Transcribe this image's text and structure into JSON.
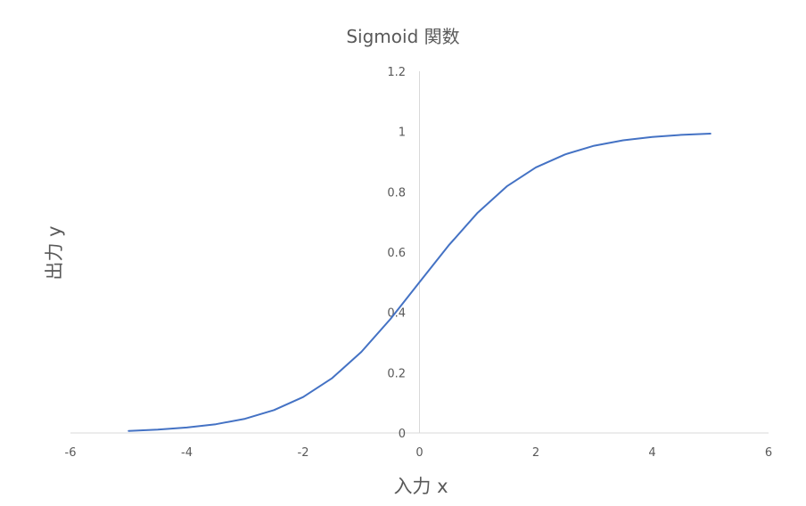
{
  "chart_data": {
    "type": "line",
    "title": "Sigmoid 関数",
    "xlabel": "入力 x",
    "ylabel": "出力 y",
    "xlim": [
      -6,
      6
    ],
    "ylim": [
      0,
      1.2
    ],
    "x_ticks": [
      "-6",
      "-4",
      "-2",
      "0",
      "2",
      "4",
      "6"
    ],
    "y_ticks": [
      "0",
      "0.2",
      "0.4",
      "0.6",
      "0.8",
      "1",
      "1.2"
    ],
    "grid": false,
    "legend": "none",
    "line_color": "#4472C4",
    "series": [
      {
        "x": [
          -5,
          -4.5,
          -4,
          -3.5,
          -3,
          -2.5,
          -2,
          -1.5,
          -1,
          -0.5,
          0,
          0.5,
          1,
          1.5,
          2,
          2.5,
          3,
          3.5,
          4,
          4.5,
          5
        ],
        "values": [
          0.0067,
          0.011,
          0.018,
          0.029,
          0.047,
          0.076,
          0.119,
          0.182,
          0.269,
          0.378,
          0.5,
          0.622,
          0.731,
          0.818,
          0.881,
          0.924,
          0.953,
          0.971,
          0.982,
          0.989,
          0.993
        ]
      }
    ]
  }
}
